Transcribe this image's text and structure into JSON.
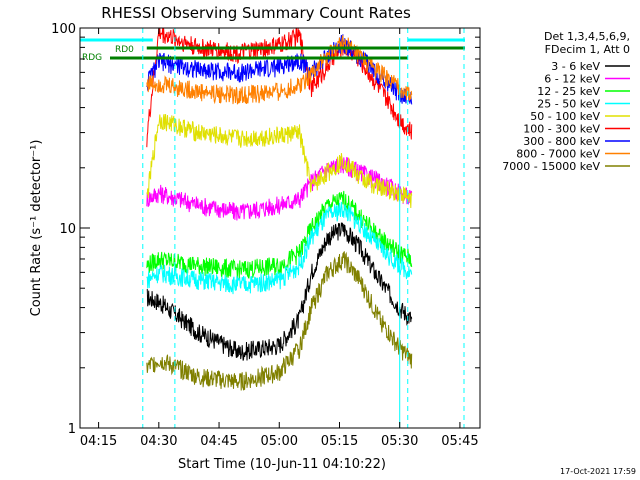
{
  "chart_data": {
    "type": "line",
    "title": "RHESSI Observing Summary Count Rates",
    "xlabel": "Start Time (10-Jun-11 04:10:22)",
    "ylabel": "Count Rate (s⁻¹ detector⁻¹)",
    "yscale": "log",
    "ylim": [
      1,
      100
    ],
    "xlim_minutes": [
      "04:10:22",
      "05:50:00"
    ],
    "x_ticks": [
      "04:15",
      "04:30",
      "04:45",
      "05:00",
      "05:15",
      "05:30",
      "05:45"
    ],
    "y_ticks": [
      "1",
      "10",
      "100"
    ],
    "legend_header": [
      "Det 1,3,4,5,6,9,",
      "FDecim 1, Att 0"
    ],
    "legend_position": "right",
    "footer_date": "17-Oct-2021 17:59",
    "grid": false,
    "markers": [
      {
        "label": "RD0",
        "color": "#00ffff"
      },
      {
        "label": "RDG",
        "color": "#008000"
      }
    ],
    "series": [
      {
        "name": "3 - 6 keV",
        "color": "#000000",
        "x": [
          "04:27",
          "04:30",
          "04:40",
          "04:50",
          "05:00",
          "05:05",
          "05:08",
          "05:12",
          "05:16",
          "05:20",
          "05:25",
          "05:30",
          "05:33"
        ],
        "values": [
          4.5,
          4.3,
          3.0,
          2.4,
          2.6,
          3.5,
          6.0,
          9.0,
          10.0,
          8.0,
          5.5,
          4.0,
          3.5
        ]
      },
      {
        "name": "6 - 12 keV",
        "color": "#ff00ff",
        "x": [
          "04:27",
          "04:30",
          "04:40",
          "04:50",
          "05:00",
          "05:05",
          "05:08",
          "05:12",
          "05:16",
          "05:20",
          "05:25",
          "05:30",
          "05:33"
        ],
        "values": [
          14,
          15,
          13,
          12,
          13,
          14,
          17,
          20,
          21,
          19,
          17,
          15,
          14
        ]
      },
      {
        "name": "12 - 25 keV",
        "color": "#00ff00",
        "x": [
          "04:27",
          "04:30",
          "04:40",
          "04:50",
          "05:00",
          "05:05",
          "05:08",
          "05:12",
          "05:16",
          "05:20",
          "05:25",
          "05:30",
          "05:33"
        ],
        "values": [
          6.5,
          7.0,
          6.5,
          6.2,
          6.5,
          7.5,
          10.0,
          13.0,
          14.0,
          11.5,
          9.0,
          7.5,
          7.0
        ]
      },
      {
        "name": "25 - 50 keV",
        "color": "#00ffff",
        "x": [
          "04:27",
          "04:30",
          "04:40",
          "04:50",
          "05:00",
          "05:05",
          "05:08",
          "05:12",
          "05:16",
          "05:20",
          "05:25",
          "05:30",
          "05:33"
        ],
        "values": [
          5.5,
          6.0,
          5.5,
          5.2,
          5.5,
          6.5,
          9.0,
          11.5,
          12.5,
          10.5,
          8.0,
          6.5,
          6.0
        ]
      },
      {
        "name": "50 - 100 keV",
        "color": "#e0e000",
        "x": [
          "04:27",
          "04:30",
          "04:40",
          "04:50",
          "05:00",
          "05:05",
          "05:08",
          "05:12",
          "05:16",
          "05:20",
          "05:25",
          "05:30",
          "05:33"
        ],
        "values": [
          14,
          35,
          30,
          28,
          29,
          30,
          16,
          19,
          22,
          18,
          16,
          15,
          14
        ]
      },
      {
        "name": "100 - 300 keV",
        "color": "#ff0000",
        "x": [
          "04:27",
          "04:30",
          "04:40",
          "04:50",
          "05:00",
          "05:05",
          "05:08",
          "05:12",
          "05:16",
          "05:20",
          "05:25",
          "05:30",
          "05:33"
        ],
        "values": [
          28,
          95,
          80,
          75,
          82,
          92,
          50,
          65,
          82,
          70,
          50,
          35,
          30
        ]
      },
      {
        "name": "300 - 800 keV",
        "color": "#0000ff",
        "x": [
          "04:27",
          "04:30",
          "04:40",
          "04:50",
          "05:00",
          "05:05",
          "05:08",
          "05:12",
          "05:16",
          "05:20",
          "05:25",
          "05:30",
          "05:33"
        ],
        "values": [
          53,
          68,
          62,
          60,
          64,
          70,
          60,
          73,
          85,
          72,
          58,
          47,
          44
        ]
      },
      {
        "name": "800 - 7000 keV",
        "color": "#ff8000",
        "x": [
          "04:27",
          "04:30",
          "04:40",
          "04:50",
          "05:00",
          "05:05",
          "05:08",
          "05:12",
          "05:16",
          "05:20",
          "05:25",
          "05:30",
          "05:33"
        ],
        "values": [
          53,
          53,
          48,
          46,
          48,
          52,
          60,
          72,
          85,
          72,
          60,
          50,
          46
        ]
      },
      {
        "name": "7000 - 15000 keV",
        "color": "#808000",
        "x": [
          "04:27",
          "04:30",
          "04:40",
          "04:50",
          "05:00",
          "05:05",
          "05:08",
          "05:12",
          "05:16",
          "05:20",
          "05:25",
          "05:30",
          "05:33"
        ],
        "values": [
          2.0,
          2.2,
          1.8,
          1.7,
          1.9,
          2.5,
          4.0,
          6.0,
          7.0,
          5.5,
          3.5,
          2.5,
          2.2
        ]
      }
    ]
  }
}
